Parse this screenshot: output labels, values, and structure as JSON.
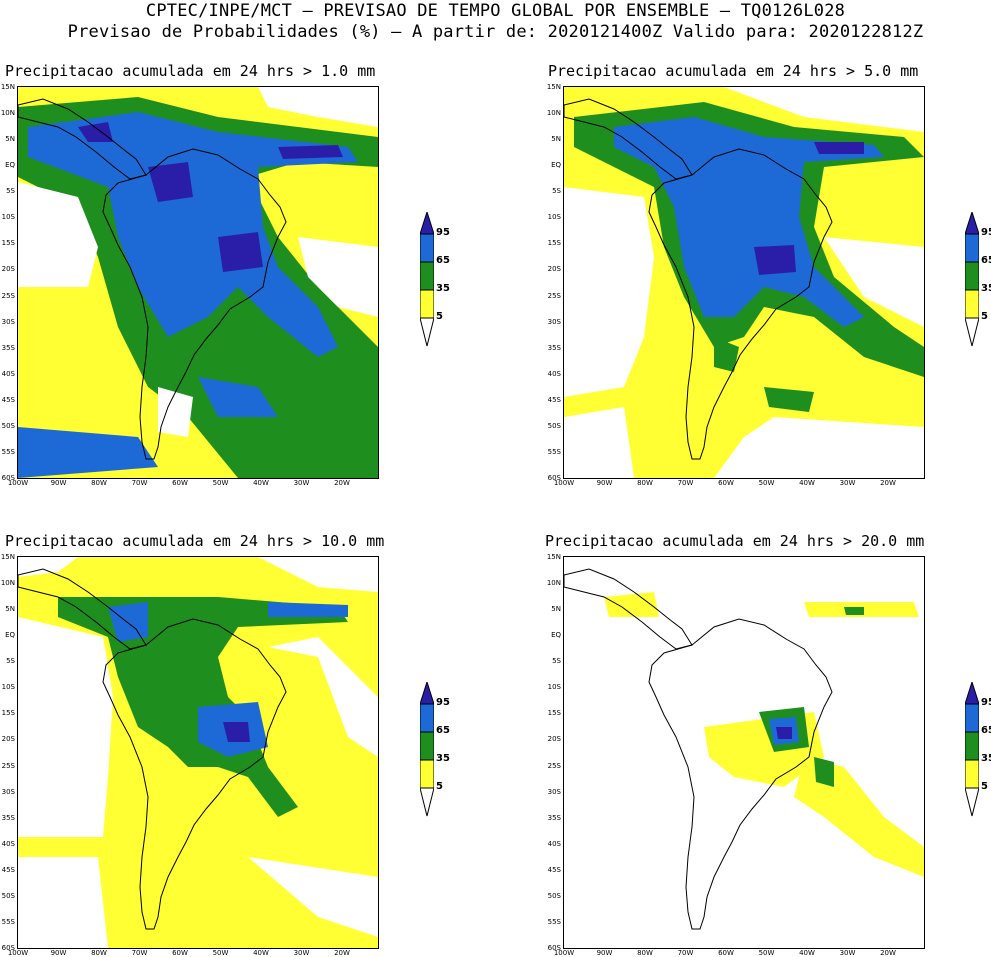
{
  "header": {
    "line1": "CPTEC/INPE/MCT – PREVISAO DE TEMPO GLOBAL POR ENSEMBLE – TQ0126L028",
    "line2": "Previsao de Probabilidades (%) –  A partir de: 2020121400Z  Valido para: 2020122812Z"
  },
  "panels": [
    {
      "title": "Precipitacao acumulada em 24 hrs > 1.0 mm"
    },
    {
      "title": "Precipitacao acumulada em 24 hrs > 5.0 mm"
    },
    {
      "title": "Precipitacao acumulada em 24 hrs > 10.0 mm"
    },
    {
      "title": "Precipitacao acumulada em 24 hrs > 20.0 mm"
    }
  ],
  "axes": {
    "lat_labels": [
      "15N",
      "10N",
      "5N",
      "EQ",
      "5S",
      "10S",
      "15S",
      "20S",
      "25S",
      "30S",
      "35S",
      "40S",
      "45S",
      "50S",
      "55S",
      "60S"
    ],
    "lon_labels": [
      "100W",
      "90W",
      "80W",
      "70W",
      "60W",
      "50W",
      "40W",
      "30W",
      "20W"
    ]
  },
  "colorbar": {
    "levels": [
      "95",
      "65",
      "35",
      "5"
    ],
    "colors": {
      "c95": "#2a1ea8",
      "c65": "#1d6ad6",
      "c35": "#1e8f1e",
      "c5": "#ffff33"
    }
  }
}
